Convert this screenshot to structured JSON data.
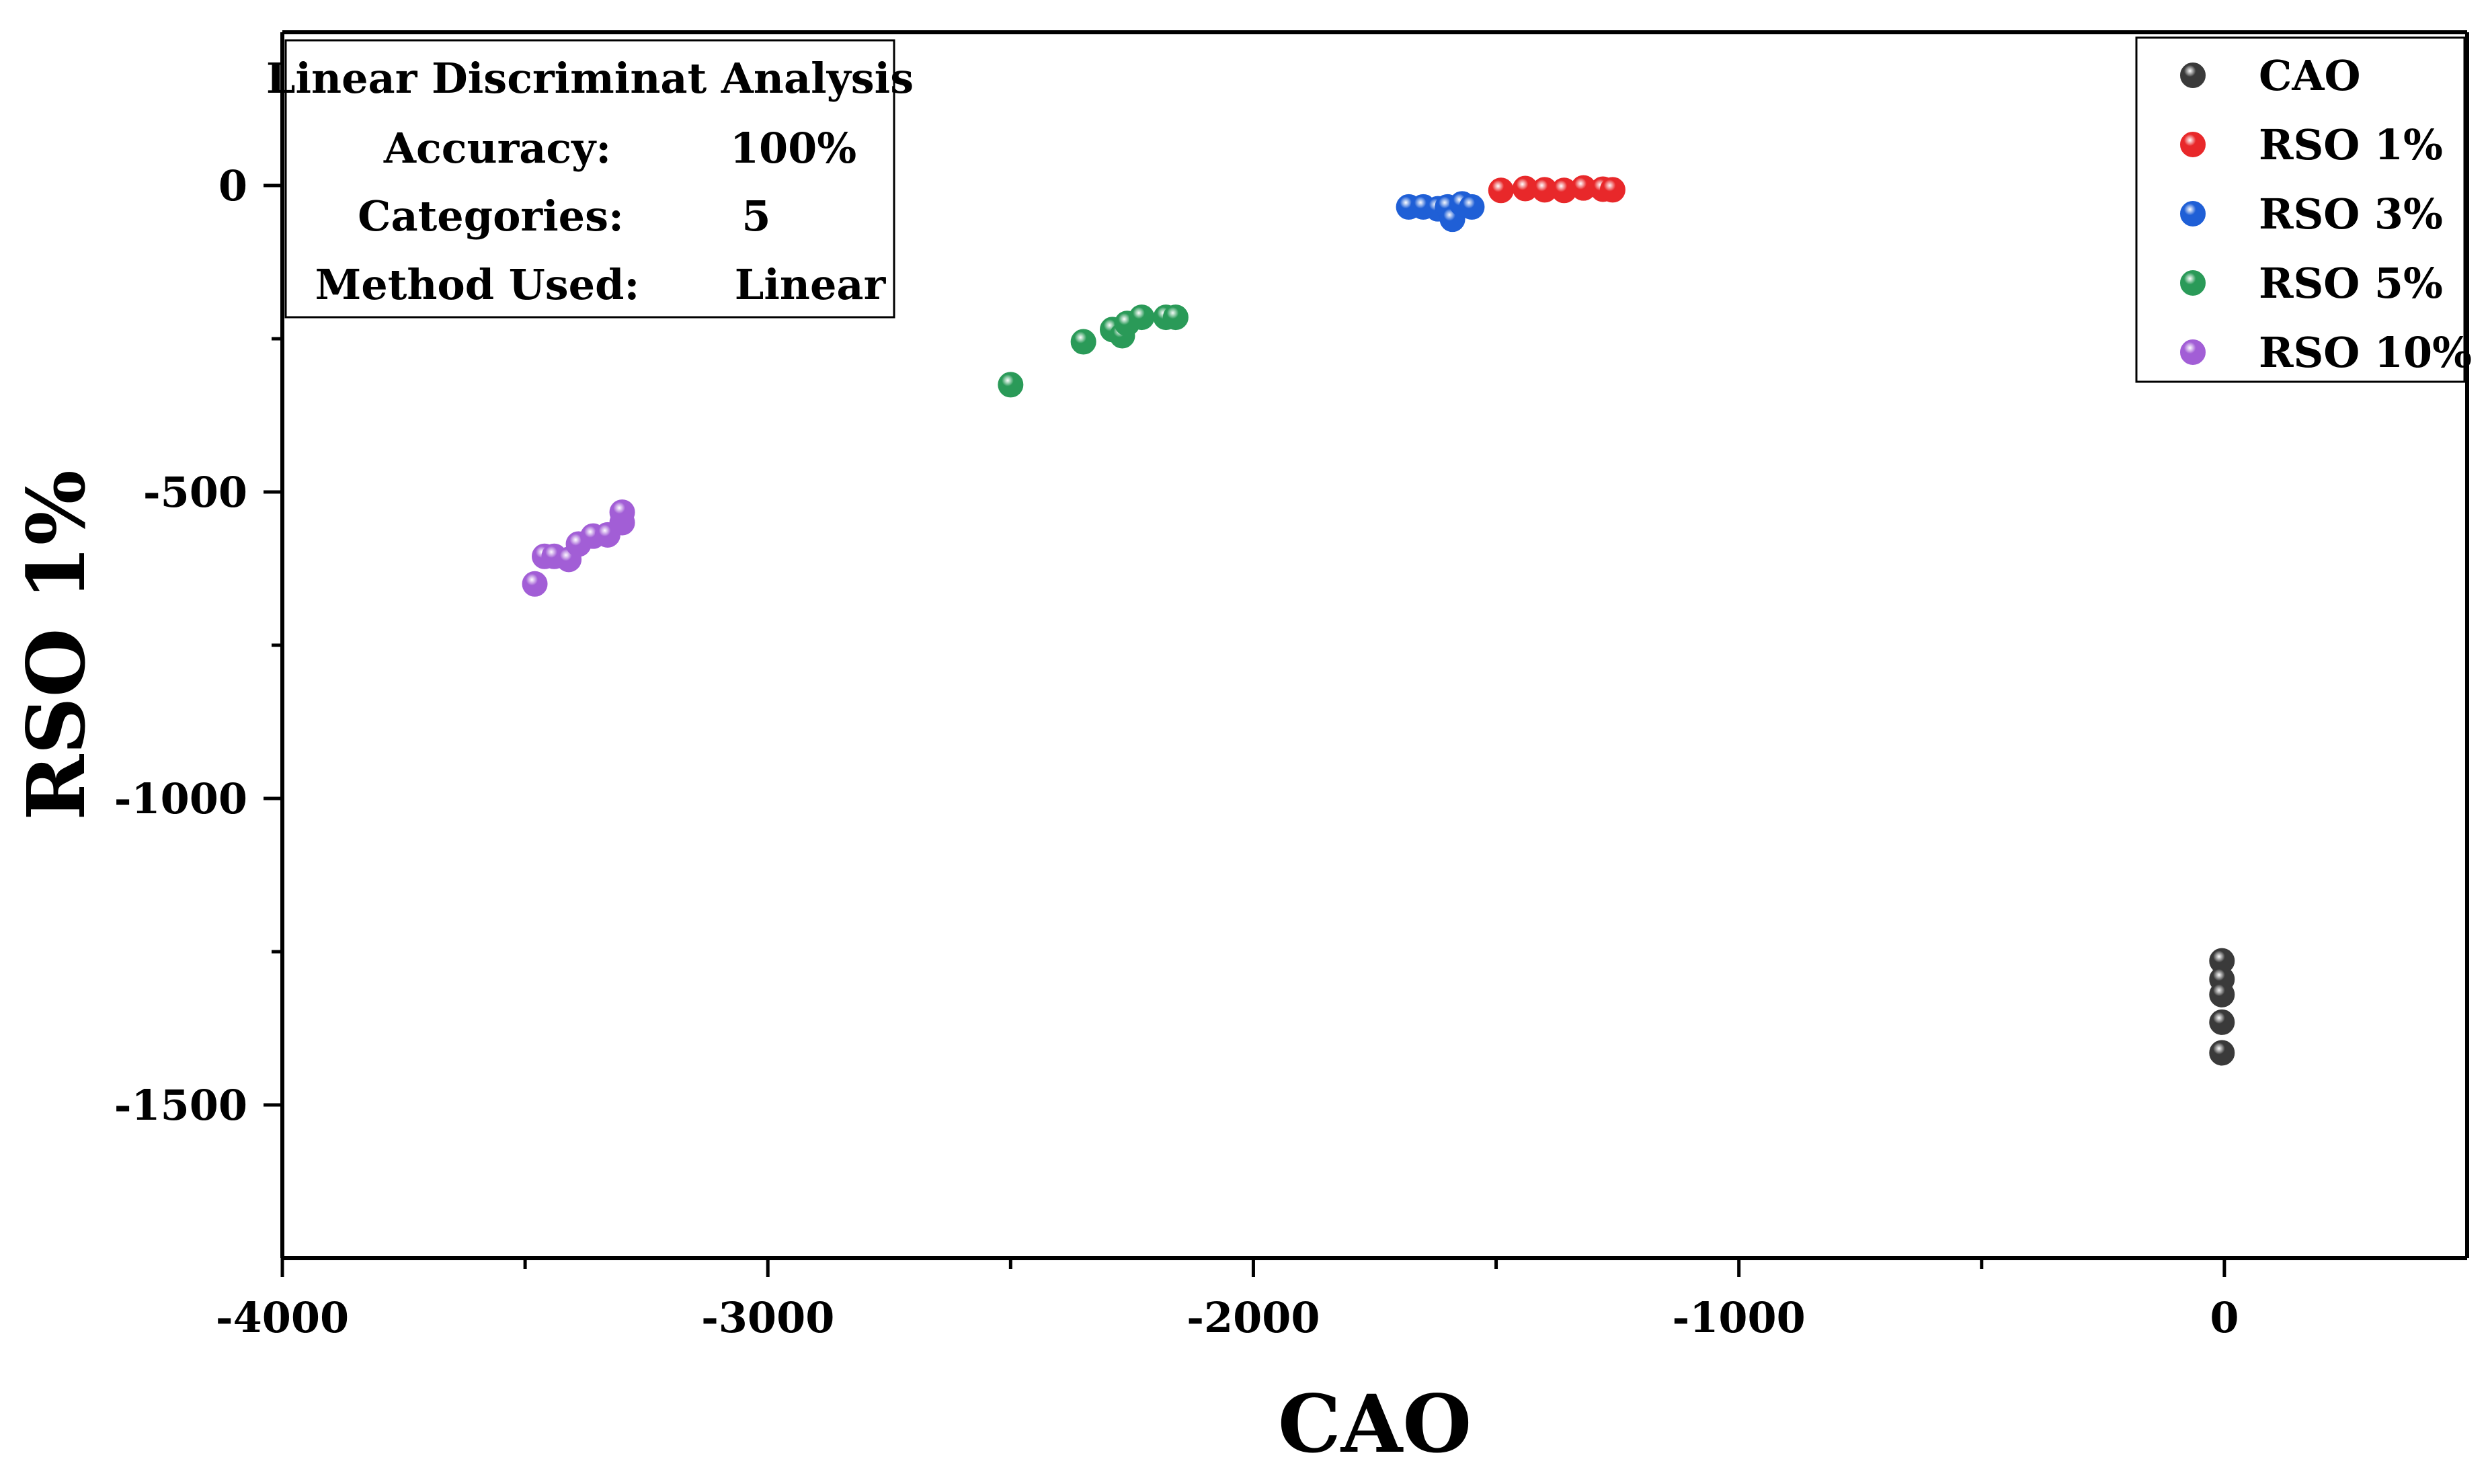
{
  "chart_data": {
    "type": "scatter",
    "title": "",
    "xlabel": "CAO",
    "ylabel": "RSO 1%",
    "xlim": [
      -4000,
      500
    ],
    "ylim": [
      -1750,
      250
    ],
    "x_ticks": [
      -4000,
      -3000,
      -2000,
      -1000,
      0
    ],
    "x_tick_labels": [
      "-4000",
      "-3000",
      "-2000",
      "-1000",
      "0"
    ],
    "x_minor_ticks": [
      -3500,
      -2500,
      -1500,
      -500
    ],
    "y_ticks": [
      0,
      -500,
      -1000,
      -1500
    ],
    "y_tick_labels": [
      "0",
      "-500",
      "-1000",
      "-1500"
    ],
    "y_minor_ticks": [
      -250,
      -750,
      -1250
    ],
    "grid": false,
    "legend_position": "top-right",
    "info_box": {
      "title": "Linear Discriminat Analysis",
      "rows": [
        {
          "label": "Accuracy:",
          "value": "100%"
        },
        {
          "label": "Categories:",
          "value": "5"
        },
        {
          "label": "Method Used:",
          "value": "Linear"
        }
      ]
    },
    "series": [
      {
        "name": "CAO",
        "color": "#3a3a3a",
        "points": [
          [
            -5,
            -1265
          ],
          [
            -5,
            -1295
          ],
          [
            -5,
            -1320
          ],
          [
            -5,
            -1365
          ],
          [
            -5,
            -1415
          ]
        ]
      },
      {
        "name": "RSO 1%",
        "color": "#e8282a",
        "points": [
          [
            -1490,
            -8
          ],
          [
            -1440,
            -5
          ],
          [
            -1400,
            -7
          ],
          [
            -1360,
            -8
          ],
          [
            -1320,
            -4
          ],
          [
            -1280,
            -6
          ],
          [
            -1260,
            -7
          ]
        ]
      },
      {
        "name": "RSO 3%",
        "color": "#1f5fd6",
        "points": [
          [
            -1680,
            -35
          ],
          [
            -1650,
            -35
          ],
          [
            -1620,
            -38
          ],
          [
            -1600,
            -35
          ],
          [
            -1590,
            -55
          ],
          [
            -1570,
            -30
          ],
          [
            -1550,
            -35
          ]
        ]
      },
      {
        "name": "RSO 5%",
        "color": "#2a9a58",
        "points": [
          [
            -2500,
            -325
          ],
          [
            -2350,
            -255
          ],
          [
            -2290,
            -235
          ],
          [
            -2270,
            -245
          ],
          [
            -2260,
            -225
          ],
          [
            -2230,
            -215
          ],
          [
            -2180,
            -215
          ],
          [
            -2160,
            -215
          ]
        ]
      },
      {
        "name": "RSO 10%",
        "color": "#a25ed6",
        "points": [
          [
            -3480,
            -650
          ],
          [
            -3460,
            -605
          ],
          [
            -3440,
            -605
          ],
          [
            -3410,
            -610
          ],
          [
            -3390,
            -585
          ],
          [
            -3360,
            -572
          ],
          [
            -3330,
            -570
          ],
          [
            -3300,
            -550
          ],
          [
            -3300,
            -533
          ]
        ]
      }
    ]
  }
}
